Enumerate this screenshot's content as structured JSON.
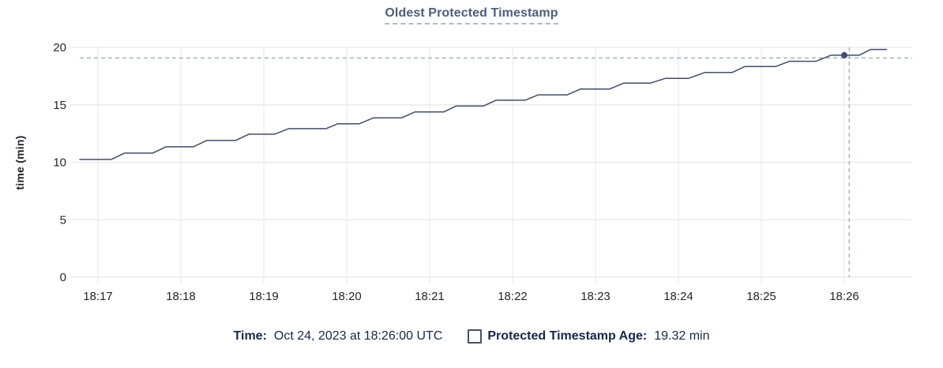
{
  "chart_data": {
    "type": "line",
    "title": "Oldest Protected Timestamp",
    "ylabel": "time (min)",
    "ylim": [
      0,
      20
    ],
    "y_ticks": [
      0,
      5,
      10,
      15,
      20
    ],
    "x_tick_labels": [
      "18:17",
      "18:18",
      "18:19",
      "18:20",
      "18:21",
      "18:22",
      "18:23",
      "18:24",
      "18:25",
      "18:26"
    ],
    "x_minutes_per_tick": 1,
    "x_range_minutes_from_first_tick": [
      -0.33,
      9.82
    ],
    "grid": true,
    "legend_position": "bottom",
    "series": [
      {
        "name": "Protected Timestamp Age",
        "unit": "min",
        "points": [
          [
            -0.22,
            10.25
          ],
          [
            0.16,
            10.25
          ],
          [
            0.32,
            10.8
          ],
          [
            0.66,
            10.8
          ],
          [
            0.82,
            11.35
          ],
          [
            1.15,
            11.35
          ],
          [
            1.31,
            11.9
          ],
          [
            1.66,
            11.9
          ],
          [
            1.82,
            12.45
          ],
          [
            2.13,
            12.45
          ],
          [
            2.3,
            12.93
          ],
          [
            2.75,
            12.93
          ],
          [
            2.89,
            13.35
          ],
          [
            3.15,
            13.35
          ],
          [
            3.32,
            13.86
          ],
          [
            3.66,
            13.86
          ],
          [
            3.82,
            14.38
          ],
          [
            4.17,
            14.38
          ],
          [
            4.32,
            14.9
          ],
          [
            4.65,
            14.9
          ],
          [
            4.8,
            15.4
          ],
          [
            5.15,
            15.4
          ],
          [
            5.31,
            15.87
          ],
          [
            5.66,
            15.87
          ],
          [
            5.82,
            16.38
          ],
          [
            6.17,
            16.38
          ],
          [
            6.34,
            16.89
          ],
          [
            6.66,
            16.89
          ],
          [
            6.84,
            17.3
          ],
          [
            7.12,
            17.3
          ],
          [
            7.32,
            17.82
          ],
          [
            7.65,
            17.82
          ],
          [
            7.8,
            18.33
          ],
          [
            8.17,
            18.33
          ],
          [
            8.34,
            18.79
          ],
          [
            8.66,
            18.79
          ],
          [
            8.84,
            19.32
          ],
          [
            9.18,
            19.32
          ],
          [
            9.32,
            19.82
          ],
          [
            9.51,
            19.82
          ]
        ]
      }
    ],
    "hover": {
      "snap_point_minutes_value": [
        9.0,
        19.32
      ],
      "crosshair_t_minutes": 9.06,
      "crosshair_value": 19.08,
      "time_label": "Oct 24, 2023 at 18:26:00 UTC",
      "value_label": "19.32 min"
    }
  },
  "legend": {
    "time_label": "Time:",
    "time_value": "Oct 24, 2023 at 18:26:00 UTC",
    "series_checkbox_icon": "checkbox-unchecked-icon",
    "series_label": "Protected Timestamp Age:",
    "series_value": "19.32 min"
  },
  "colors": {
    "line": "#3e4d6d",
    "grid": "#ebebeb",
    "crosshair": "#9fb3c4",
    "title": "#4c5e80",
    "title_underline": "#a9bccd",
    "tick_text": "#262626",
    "axis_title_text": "#20242c",
    "legend_text": "#13294a",
    "checkbox_border": "#44536b",
    "background": "#ffffff"
  }
}
